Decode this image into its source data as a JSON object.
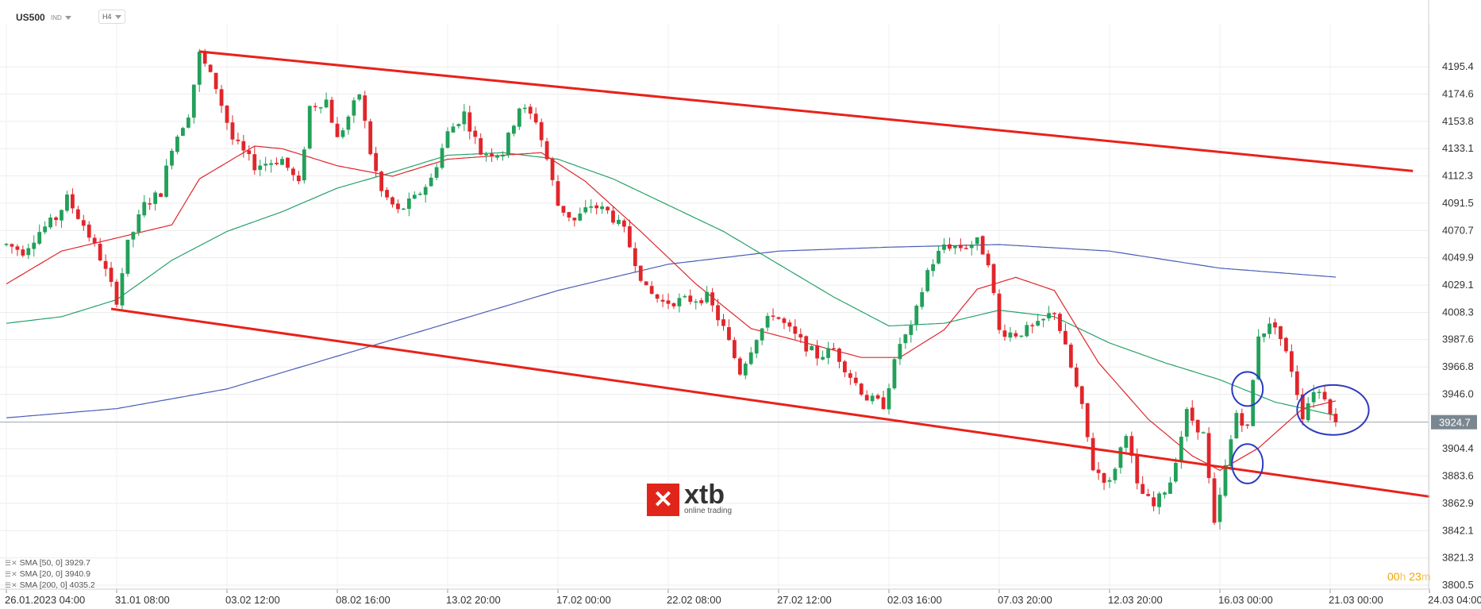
{
  "header": {
    "symbol": "US500",
    "market": "IND",
    "timeframe": "H4"
  },
  "watermark": {
    "brand": "xtb",
    "tagline": "online trading",
    "mark": "✕"
  },
  "countdown": {
    "hours": "00",
    "hours_unit": "h",
    "minutes": "23",
    "minutes_unit": "m"
  },
  "legend": [
    {
      "label": "SMA [50, 0] 3929.7",
      "color": "#26a269"
    },
    {
      "label": "SMA [20, 0] 3940.9",
      "color": "#e0262b"
    },
    {
      "label": "SMA [200, 0] 4035.2",
      "color": "#4a5db6"
    }
  ],
  "chart_data": {
    "type": "candlestick",
    "instrument": "US500",
    "timeframe": "H4",
    "y_ticks": [
      "4195.4",
      "4174.6",
      "4153.8",
      "4133.1",
      "4112.3",
      "4091.5",
      "4070.7",
      "4049.9",
      "4029.1",
      "4008.3",
      "3987.6",
      "3966.8",
      "3946.0",
      "3904.4",
      "3883.6",
      "3862.9",
      "3842.1",
      "3821.3",
      "3800.5"
    ],
    "y_tick_values": [
      4195.4,
      4174.6,
      4153.8,
      4133.1,
      4112.3,
      4091.5,
      4070.7,
      4049.9,
      4029.1,
      4008.3,
      3987.6,
      3966.8,
      3946.0,
      3904.4,
      3883.6,
      3862.9,
      3842.1,
      3821.3,
      3800.5
    ],
    "ylim": [
      3797.5,
      4213.0
    ],
    "x_ticks": [
      "26.01.2023  04:00",
      "31.01  08:00",
      "03.02  12:00",
      "08.02  16:00",
      "13.02  20:00",
      "17.02  00:00",
      "22.02  08:00",
      "27.02  12:00",
      "02.03  16:00",
      "07.03  20:00",
      "12.03  20:00",
      "16.03  00:00",
      "21.03  00:00",
      "24.03  04:00"
    ],
    "x_tick_index": [
      0,
      20,
      40,
      60,
      80,
      100,
      120,
      140,
      160,
      180,
      200,
      220,
      240,
      258
    ],
    "current_price": "3924.7",
    "current_price_value": 3924.7,
    "anchors": [
      [
        0,
        4060
      ],
      [
        3,
        4055
      ],
      [
        6,
        4070
      ],
      [
        9,
        4080
      ],
      [
        11,
        4095
      ],
      [
        14,
        4075
      ],
      [
        17,
        4050
      ],
      [
        20,
        4018
      ],
      [
        22,
        4060
      ],
      [
        25,
        4090
      ],
      [
        28,
        4100
      ],
      [
        30,
        4135
      ],
      [
        33,
        4160
      ],
      [
        35,
        4205
      ],
      [
        38,
        4180
      ],
      [
        41,
        4140
      ],
      [
        45,
        4120
      ],
      [
        50,
        4125
      ],
      [
        53,
        4105
      ],
      [
        55,
        4165
      ],
      [
        58,
        4170
      ],
      [
        60,
        4140
      ],
      [
        64,
        4175
      ],
      [
        66,
        4130
      ],
      [
        68,
        4100
      ],
      [
        71,
        4085
      ],
      [
        74,
        4095
      ],
      [
        77,
        4110
      ],
      [
        80,
        4145
      ],
      [
        83,
        4160
      ],
      [
        86,
        4130
      ],
      [
        90,
        4130
      ],
      [
        93,
        4165
      ],
      [
        96,
        4155
      ],
      [
        98,
        4125
      ],
      [
        100,
        4090
      ],
      [
        103,
        4078
      ],
      [
        106,
        4090
      ],
      [
        109,
        4085
      ],
      [
        112,
        4070
      ],
      [
        116,
        4025
      ],
      [
        119,
        4016
      ],
      [
        124,
        4018
      ],
      [
        127,
        4020
      ],
      [
        130,
        3996
      ],
      [
        133,
        3963
      ],
      [
        136,
        3990
      ],
      [
        139,
        4008
      ],
      [
        143,
        3990
      ],
      [
        147,
        3975
      ],
      [
        150,
        3980
      ],
      [
        153,
        3960
      ],
      [
        156,
        3943
      ],
      [
        159,
        3938
      ],
      [
        162,
        3985
      ],
      [
        164,
        3995
      ],
      [
        167,
        4040
      ],
      [
        170,
        4060
      ],
      [
        173,
        4058
      ],
      [
        176,
        4062
      ],
      [
        178,
        4048
      ],
      [
        180,
        3994
      ],
      [
        183,
        3992
      ],
      [
        187,
        3998
      ],
      [
        190,
        4010
      ],
      [
        193,
        3966
      ],
      [
        195,
        3935
      ],
      [
        197,
        3890
      ],
      [
        200,
        3878
      ],
      [
        203,
        3918
      ],
      [
        205,
        3875
      ],
      [
        208,
        3860
      ],
      [
        211,
        3880
      ],
      [
        214,
        3932
      ],
      [
        217,
        3915
      ],
      [
        219,
        3845
      ],
      [
        221,
        3890
      ],
      [
        223,
        3932
      ],
      [
        225,
        3920
      ],
      [
        227,
        3992
      ],
      [
        230,
        4000
      ],
      [
        233,
        3965
      ],
      [
        235,
        3930
      ],
      [
        237,
        3950
      ],
      [
        239,
        3945
      ],
      [
        241,
        3924.7
      ]
    ],
    "sma20": [
      [
        0,
        4030
      ],
      [
        10,
        4055
      ],
      [
        20,
        4065
      ],
      [
        30,
        4075
      ],
      [
        35,
        4110
      ],
      [
        45,
        4135
      ],
      [
        50,
        4133
      ],
      [
        60,
        4120
      ],
      [
        70,
        4112
      ],
      [
        80,
        4125
      ],
      [
        90,
        4128
      ],
      [
        97,
        4130
      ],
      [
        105,
        4108
      ],
      [
        115,
        4070
      ],
      [
        125,
        4030
      ],
      [
        135,
        3996
      ],
      [
        145,
        3985
      ],
      [
        155,
        3974
      ],
      [
        162,
        3974
      ],
      [
        170,
        3995
      ],
      [
        176,
        4026
      ],
      [
        183,
        4035
      ],
      [
        190,
        4025
      ],
      [
        198,
        3970
      ],
      [
        207,
        3927
      ],
      [
        215,
        3899
      ],
      [
        220,
        3888
      ],
      [
        227,
        3905
      ],
      [
        235,
        3935
      ],
      [
        241,
        3940.9
      ]
    ],
    "sma50": [
      [
        0,
        4000
      ],
      [
        10,
        4005
      ],
      [
        20,
        4018
      ],
      [
        30,
        4048
      ],
      [
        40,
        4070
      ],
      [
        50,
        4085
      ],
      [
        60,
        4103
      ],
      [
        70,
        4115
      ],
      [
        80,
        4128
      ],
      [
        90,
        4130
      ],
      [
        100,
        4125
      ],
      [
        110,
        4110
      ],
      [
        120,
        4090
      ],
      [
        130,
        4070
      ],
      [
        140,
        4045
      ],
      [
        150,
        4020
      ],
      [
        160,
        3998
      ],
      [
        170,
        4000
      ],
      [
        180,
        4010
      ],
      [
        190,
        4005
      ],
      [
        200,
        3985
      ],
      [
        210,
        3970
      ],
      [
        220,
        3957
      ],
      [
        230,
        3940
      ],
      [
        241,
        3929.7
      ]
    ],
    "sma200": [
      [
        0,
        3928
      ],
      [
        20,
        3935
      ],
      [
        40,
        3950
      ],
      [
        60,
        3975
      ],
      [
        80,
        4000
      ],
      [
        100,
        4025
      ],
      [
        120,
        4045
      ],
      [
        140,
        4055
      ],
      [
        160,
        4058
      ],
      [
        180,
        4060
      ],
      [
        200,
        4055
      ],
      [
        220,
        4042
      ],
      [
        241,
        4035.2
      ]
    ],
    "channel_upper": [
      [
        35,
        4207
      ],
      [
        255,
        4116
      ]
    ],
    "channel_lower": [
      [
        19,
        4011
      ],
      [
        258,
        3868
      ]
    ],
    "highlight_ellipses": [
      {
        "x": 225,
        "y": 3950,
        "rx": 2.8,
        "ry": 13
      },
      {
        "x": 225,
        "y": 3893,
        "rx": 2.8,
        "ry": 15
      },
      {
        "x": 240.5,
        "y": 3934,
        "rx": 6.5,
        "ry": 19
      }
    ],
    "colors": {
      "up": "#22a05a",
      "down": "#e0262b",
      "sma20": "#e0262b",
      "sma50": "#26a269",
      "sma200": "#4a5db6",
      "channel": "#e8221b",
      "highlight": "#2b3bbf"
    }
  }
}
